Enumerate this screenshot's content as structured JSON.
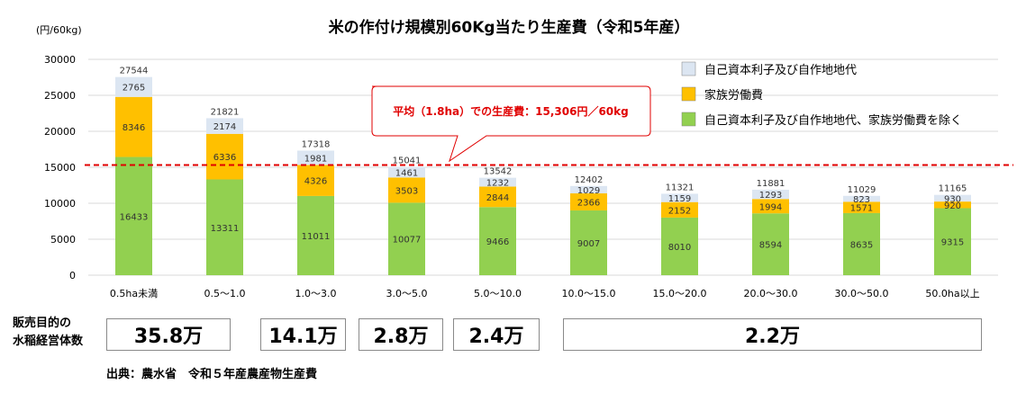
{
  "chart_data": {
    "type": "bar",
    "stacked": true,
    "title": "米の作付け規模別60Kg当たり生産費（令和5年産）",
    "ylabel": "(円/60kg)",
    "ylim": [
      0,
      30000
    ],
    "yticks": [
      0,
      5000,
      10000,
      15000,
      20000,
      25000,
      30000
    ],
    "grid": true,
    "legend_position": "top-right",
    "categories": [
      "0.5ha未満",
      "0.5～1.0",
      "1.0～3.0",
      "3.0～5.0",
      "5.0～10.0",
      "10.0～15.0",
      "15.0～20.0",
      "20.0～30.0",
      "30.0～50.0",
      "50.0ha以上"
    ],
    "series": [
      {
        "name": "自己資本利子及び自作地地代、家族労働費を除く",
        "color": "#92d050",
        "values": [
          16433,
          13311,
          11011,
          10077,
          9466,
          9007,
          8010,
          8594,
          8635,
          9315
        ]
      },
      {
        "name": "家族労働費",
        "color": "#ffc000",
        "values": [
          8346,
          6336,
          4326,
          3503,
          2844,
          2366,
          2152,
          1994,
          1571,
          920
        ]
      },
      {
        "name": "自己資本利子及び自作地地代",
        "color": "#dce6f2",
        "values": [
          2765,
          2174,
          1981,
          1461,
          1232,
          1029,
          1159,
          1293,
          823,
          930
        ]
      }
    ],
    "totals": [
      27544,
      21821,
      17318,
      15041,
      13542,
      12402,
      11321,
      11881,
      11029,
      11165
    ],
    "average_line": {
      "value": 15306,
      "color": "#e00000",
      "label": "平均（1.8ha）での生産費：15,306円／60kg"
    }
  },
  "farms": {
    "label_line1": "販売目的の",
    "label_line2": "水稲経営体数",
    "values": [
      "35.8万",
      "14.1万",
      "2.8万",
      "2.4万",
      "2.2万"
    ]
  },
  "source": "出典：農水省　令和５年産農産物生産費"
}
